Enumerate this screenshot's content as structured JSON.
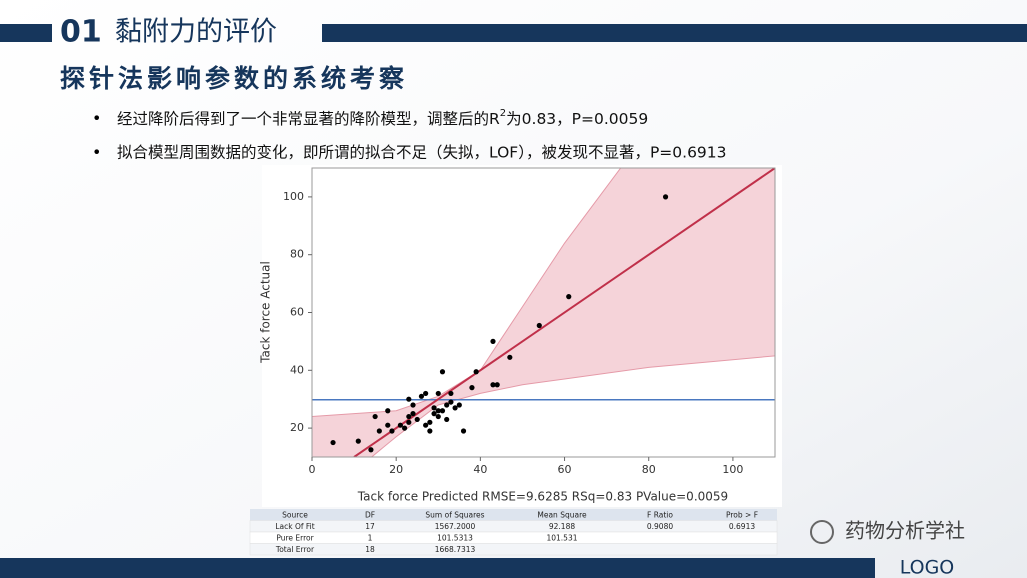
{
  "header": {
    "number": "01",
    "title": "黏附力的评价"
  },
  "subtitle": "探针法影响参数的系统考察",
  "bullets": [
    {
      "parts": [
        "经过降阶后得到了一个非常显著的降阶模型，调整后的R",
        "2",
        "为0.83，P=0.0059"
      ]
    },
    {
      "parts": [
        "拟合模型周围数据的变化，即所谓的拟合不足（失拟，LOF），被发现不显著，P=0.6913"
      ]
    }
  ],
  "chart_data": {
    "type": "scatter",
    "x_label": "Tack force Predicted RMSE=9.6285 RSq=0.83 PValue=0.0059",
    "y_label": "Tack force Actual",
    "xlim": [
      0,
      110
    ],
    "ylim": [
      10,
      110
    ],
    "xticks": [
      0,
      20,
      40,
      60,
      80,
      100
    ],
    "yticks": [
      20,
      40,
      60,
      80,
      100
    ],
    "points": {
      "color": "#000000",
      "x": [
        5,
        11,
        14,
        15,
        16,
        18,
        18,
        19,
        21,
        22,
        23,
        23,
        23,
        24,
        24,
        25,
        26,
        27,
        27,
        28,
        28,
        29,
        29,
        30,
        30,
        30,
        31,
        31,
        32,
        32,
        33,
        33,
        34,
        35,
        36,
        38,
        39,
        43,
        43,
        44,
        47,
        54,
        61,
        84
      ],
      "y": [
        15,
        15.5,
        12.5,
        24,
        19,
        26,
        21,
        19,
        21,
        20,
        22,
        24,
        30,
        28,
        25,
        23,
        31,
        32,
        21,
        22,
        19,
        27,
        25,
        26,
        32,
        24,
        39.5,
        26,
        28,
        23,
        32,
        29,
        27,
        28,
        19,
        34,
        39.5,
        50,
        35,
        35,
        44.5,
        55.5,
        65.5,
        100
      ]
    },
    "fit": {
      "color": "#c0304a",
      "x": [
        10,
        110
      ],
      "y": [
        10,
        110
      ]
    },
    "band": {
      "color": "#f2c4cc",
      "x": [
        0,
        10,
        20,
        30,
        40,
        50,
        60,
        80,
        110
      ],
      "upper": [
        24,
        25,
        26,
        31,
        40,
        62,
        84,
        123,
        189
      ],
      "lower": [
        -20,
        5,
        17,
        28,
        32,
        35,
        37,
        41,
        45
      ]
    },
    "mean": {
      "color": "#4a78c0",
      "value": 29.8
    }
  },
  "table": {
    "header": [
      "Source",
      "DF",
      "Sum of Squares",
      "Mean Square",
      "F Ratio",
      "Prob > F"
    ],
    "rows": [
      [
        "Lack Of Fit",
        "17",
        "1567.2000",
        "92.188",
        "0.9080",
        "0.6913"
      ],
      [
        "Pure Error",
        "1",
        "101.5313",
        "101.531",
        "",
        ""
      ],
      [
        "Total Error",
        "18",
        "1668.7313",
        "",
        "",
        ""
      ]
    ]
  },
  "watermark": "药物分析学社",
  "footer": {
    "logo": "LOGO"
  }
}
